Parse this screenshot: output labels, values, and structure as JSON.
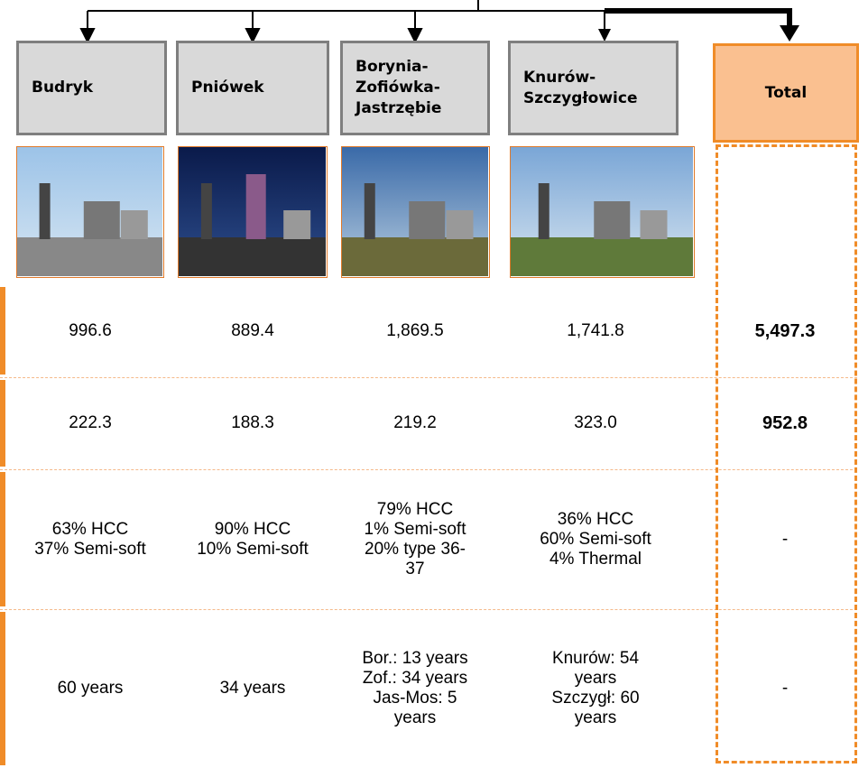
{
  "headers": [
    {
      "lines": [
        "Budryk"
      ]
    },
    {
      "lines": [
        "Pniówek"
      ]
    },
    {
      "lines": [
        "Borynia-",
        "Zofiówka-",
        "Jastrzębie"
      ]
    },
    {
      "lines": [
        "Knurów-",
        "Szczygłowice"
      ]
    },
    {
      "lines": [
        "Total"
      ]
    }
  ],
  "rows": [
    [
      [
        "996.6"
      ],
      [
        "889.4"
      ],
      [
        "1,869.5"
      ],
      [
        "1,741.8"
      ],
      [
        "5,497.3"
      ]
    ],
    [
      [
        "222.3"
      ],
      [
        "188.3"
      ],
      [
        "219.2"
      ],
      [
        "323.0"
      ],
      [
        "952.8"
      ]
    ],
    [
      [
        "63% HCC",
        "37% Semi-soft"
      ],
      [
        "90% HCC",
        "10% Semi-soft"
      ],
      [
        "79% HCC",
        "1% Semi-soft",
        "20% type 36-",
        "37"
      ],
      [
        "36% HCC",
        "60% Semi-soft",
        "4% Thermal"
      ],
      [
        "-"
      ]
    ],
    [
      [
        "60 years"
      ],
      [
        "34 years"
      ],
      [
        "Bor.: 13 years",
        "Zof.: 34 years",
        "Jas-Mos: 5",
        "years"
      ],
      [
        "Knurów: 54",
        "years",
        "Szczygł: 60",
        "years"
      ],
      [
        "-"
      ]
    ]
  ]
}
